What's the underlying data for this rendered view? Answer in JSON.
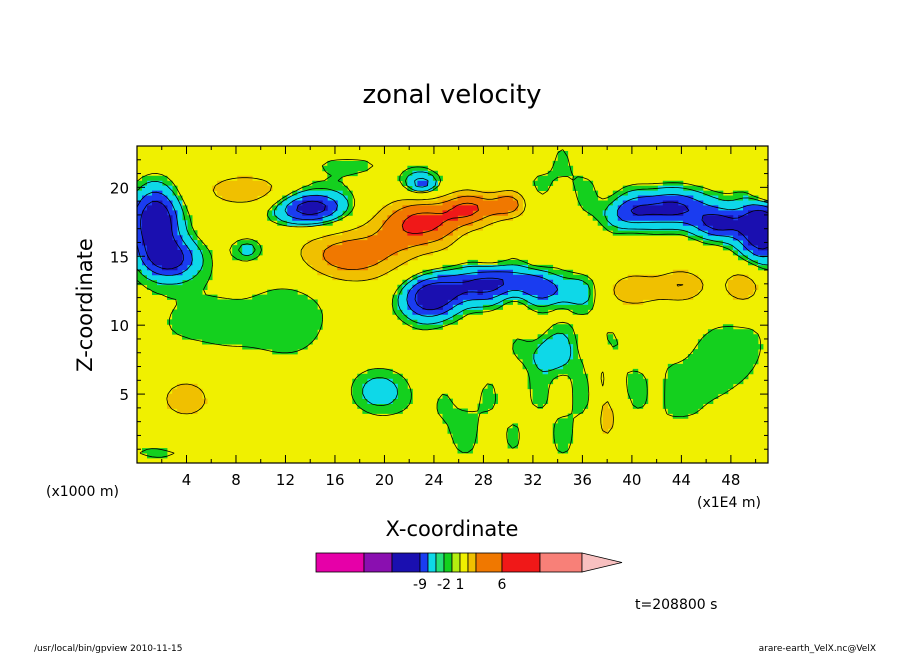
{
  "chart_data": {
    "type": "heatmap",
    "title": "zonal velocity",
    "xlabel": "X-coordinate",
    "ylabel": "Z-coordinate",
    "x_unit_left": "(x1000 m)",
    "x_unit_right": "(x1E4 m)",
    "xlim": [
      0,
      51
    ],
    "ylim": [
      0,
      23
    ],
    "x_ticks": [
      "4",
      "8",
      "12",
      "16",
      "20",
      "24",
      "28",
      "32",
      "36",
      "40",
      "44",
      "48"
    ],
    "x_tick_values": [
      4,
      8,
      12,
      16,
      20,
      24,
      28,
      32,
      36,
      40,
      44,
      48
    ],
    "y_ticks": [
      "5",
      "10",
      "15",
      "20"
    ],
    "y_tick_values": [
      5,
      10,
      15,
      20
    ],
    "timestamp": "t=208800 s",
    "colorbar": {
      "colors": [
        "#e600a8",
        "#8a0fb0",
        "#1a0fb0",
        "#1a3cf0",
        "#0ed8e8",
        "#26e07a",
        "#14d01e",
        "#b4ee10",
        "#f0f000",
        "#f0c000",
        "#f07800",
        "#f01818",
        "#f88078",
        "#f8c0c0"
      ],
      "labels": [
        "-9",
        "-2",
        "1",
        "6"
      ],
      "label_after_bin": [
        2,
        5,
        7,
        10
      ]
    },
    "level_colors": {
      "pos_levels": [
        1,
        3,
        5,
        7,
        9
      ],
      "neg_levels": [
        -2,
        -4,
        -6,
        -8
      ],
      "color_by_level": {
        "n4": "#1a0fb0",
        "n3": "#1a3cf0",
        "n2": "#0ed8e8",
        "n1": "#14d01e",
        "p0": "#f0f000",
        "p1": "#f0c000",
        "p2": "#f07800",
        "p3": "#f01818",
        "p4": "#f88078",
        "p5": "#f8c0c0"
      }
    },
    "background": "#f0f000",
    "features": [
      {
        "x": 1.5,
        "y": 17.5,
        "sx": 1.4,
        "sy": 1.8,
        "a": -9
      },
      {
        "x": 50.5,
        "y": 17.0,
        "sx": 1.4,
        "sy": 1.8,
        "a": -9
      },
      {
        "x": 2.8,
        "y": 14.8,
        "sx": 1.6,
        "sy": 1.0,
        "a": -6
      },
      {
        "x": 9.0,
        "y": 15.5,
        "sx": 1.0,
        "sy": 0.6,
        "a": -3
      },
      {
        "x": 14.0,
        "y": 18.5,
        "sx": 2.2,
        "sy": 0.9,
        "a": -8
      },
      {
        "x": 23.5,
        "y": 12.0,
        "sx": 1.6,
        "sy": 1.2,
        "a": -8
      },
      {
        "x": 27.0,
        "y": 12.8,
        "sx": 1.8,
        "sy": 1.0,
        "a": -6
      },
      {
        "x": 30.5,
        "y": 13.2,
        "sx": 1.8,
        "sy": 0.8,
        "a": -5
      },
      {
        "x": 34.0,
        "y": 12.5,
        "sx": 1.8,
        "sy": 0.8,
        "a": -4
      },
      {
        "x": 23.0,
        "y": 20.2,
        "sx": 1.0,
        "sy": 0.6,
        "a": -6
      },
      {
        "x": 43.0,
        "y": 18.5,
        "sx": 2.6,
        "sy": 1.0,
        "a": -7
      },
      {
        "x": 47.0,
        "y": 17.3,
        "sx": 1.4,
        "sy": 0.8,
        "a": -6
      },
      {
        "x": 39.5,
        "y": 18.0,
        "sx": 1.4,
        "sy": 0.8,
        "a": -3
      },
      {
        "x": 19.5,
        "y": 5.2,
        "sx": 1.6,
        "sy": 1.2,
        "a": -3
      },
      {
        "x": 9.0,
        "y": 19.8,
        "sx": 2.6,
        "sy": 0.9,
        "a": 5
      },
      {
        "x": 17.0,
        "y": 15.0,
        "sx": 3.6,
        "sy": 1.5,
        "a": 6
      },
      {
        "x": 23.0,
        "y": 17.5,
        "sx": 2.6,
        "sy": 1.4,
        "a": 7
      },
      {
        "x": 27.0,
        "y": 18.5,
        "sx": 1.6,
        "sy": 0.9,
        "a": 5
      },
      {
        "x": 30.0,
        "y": 18.8,
        "sx": 1.4,
        "sy": 0.8,
        "a": 5
      },
      {
        "x": 40.0,
        "y": 12.5,
        "sx": 1.4,
        "sy": 1.0,
        "a": 5
      },
      {
        "x": 44.0,
        "y": 12.8,
        "sx": 1.6,
        "sy": 1.0,
        "a": 5
      },
      {
        "x": 49.0,
        "y": 12.8,
        "sx": 1.4,
        "sy": 1.2,
        "a": 5
      },
      {
        "x": 4.0,
        "y": 4.8,
        "sx": 2.2,
        "sy": 1.6,
        "a": 4
      },
      {
        "x": 51.0,
        "y": 19.8,
        "sx": 1.0,
        "sy": 0.8,
        "a": 5
      },
      {
        "x": 6.0,
        "y": 10.0,
        "sx": 6.0,
        "sy": 3.5,
        "a": -1.6
      },
      {
        "x": 13.0,
        "y": 11.5,
        "sx": 2.0,
        "sy": 2.5,
        "a": -1.6
      },
      {
        "x": 26.0,
        "y": 3.0,
        "sx": 3.5,
        "sy": 3.0,
        "a": -1.5
      },
      {
        "x": 36.0,
        "y": 6.0,
        "sx": 3.0,
        "sy": 5.0,
        "a": -1.5
      },
      {
        "x": 44.0,
        "y": 5.0,
        "sx": 3.5,
        "sy": 4.0,
        "a": -1.4
      },
      {
        "x": 17.0,
        "y": 21.5,
        "sx": 5.0,
        "sy": 1.2,
        "a": -1.5
      },
      {
        "x": 34.0,
        "y": 20.5,
        "sx": 3.0,
        "sy": 1.5,
        "a": -1.5
      },
      {
        "x": 2.0,
        "y": 0.8,
        "sx": 4.0,
        "sy": 1.0,
        "a": -1.5
      },
      {
        "x": 49.0,
        "y": 9.0,
        "sx": 2.5,
        "sy": 3.0,
        "a": -1.4
      },
      {
        "x": 33.0,
        "y": 8.0,
        "sx": 1.2,
        "sy": 1.0,
        "a": -3
      },
      {
        "x": 38.0,
        "y": 3.0,
        "sx": 0.8,
        "sy": 1.5,
        "a": 5
      },
      {
        "x": 37.5,
        "y": 6.5,
        "sx": 0.6,
        "sy": 1.2,
        "a": 4
      }
    ]
  },
  "footer": {
    "left": "/usr/local/bin/gpview   2010-11-15",
    "right": "arare-earth_VelX.nc@VelX"
  }
}
